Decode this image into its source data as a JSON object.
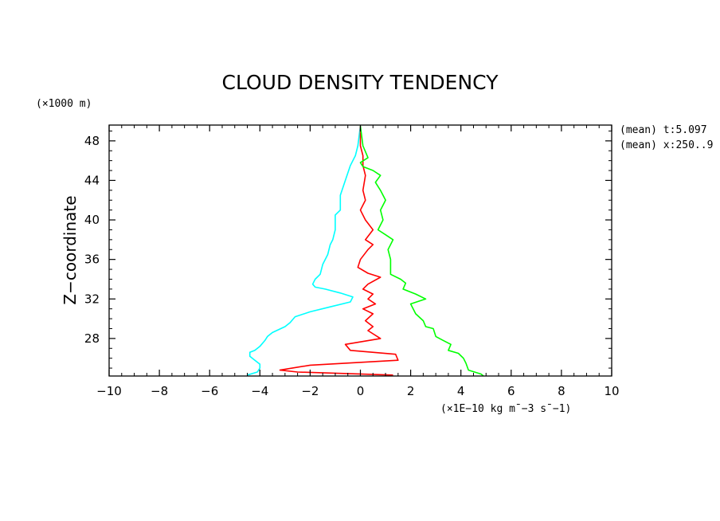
{
  "chart_data": {
    "type": "line",
    "title": "CLOUD DENSITY TENDENCY",
    "ylabel": "Z−coordinate",
    "yunit": "(×1000 m)",
    "xunit": "(×1E−10 kg m¯−3 s¯−1)",
    "annotations": [
      "(mean) t:5.097",
      "(mean) x:250..9"
    ],
    "xlim": [
      -10,
      10
    ],
    "ylim": [
      24.2,
      49.6
    ],
    "x_ticks": [
      -10,
      -8,
      -6,
      -4,
      -2,
      0,
      2,
      4,
      6,
      8,
      10
    ],
    "x_tick_labels": [
      "−10",
      "−8",
      "−6",
      "−4",
      "−2",
      "0",
      "2",
      "4",
      "6",
      "8",
      "10"
    ],
    "y_ticks": [
      28,
      32,
      36,
      40,
      44,
      48
    ],
    "y_tick_labels": [
      "28",
      "32",
      "36",
      "40",
      "44",
      "48"
    ],
    "series": [
      {
        "name": "cyan",
        "color": "#00ffff",
        "points": [
          [
            0,
            49.5
          ],
          [
            -0.1,
            47.5
          ],
          [
            -0.2,
            46.5
          ],
          [
            -0.4,
            45.5
          ],
          [
            -0.6,
            44
          ],
          [
            -0.8,
            42.5
          ],
          [
            -0.8,
            41
          ],
          [
            -1.0,
            40.5
          ],
          [
            -1.0,
            39
          ],
          [
            -1.1,
            38
          ],
          [
            -1.2,
            37.5
          ],
          [
            -1.3,
            36.5
          ],
          [
            -1.5,
            35.5
          ],
          [
            -1.6,
            34.5
          ],
          [
            -1.8,
            34
          ],
          [
            -1.9,
            33.5
          ],
          [
            -1.8,
            33.2
          ],
          [
            -1.4,
            33
          ],
          [
            -0.8,
            32.6
          ],
          [
            -0.3,
            32.2
          ],
          [
            -0.4,
            31.7
          ],
          [
            -1.2,
            31.2
          ],
          [
            -2.0,
            30.7
          ],
          [
            -2.6,
            30.2
          ],
          [
            -2.8,
            29.6
          ],
          [
            -3.0,
            29.2
          ],
          [
            -3.5,
            28.6
          ],
          [
            -3.7,
            28.2
          ],
          [
            -3.8,
            27.8
          ],
          [
            -4.0,
            27.2
          ],
          [
            -4.2,
            26.8
          ],
          [
            -4.4,
            26.6
          ],
          [
            -4.4,
            26.2
          ],
          [
            -4.2,
            25.8
          ],
          [
            -4.0,
            25.4
          ],
          [
            -4.0,
            25.0
          ],
          [
            -4.1,
            24.6
          ],
          [
            -4.5,
            24.3
          ]
        ]
      },
      {
        "name": "red",
        "color": "#ff0000",
        "points": [
          [
            0,
            49.5
          ],
          [
            0,
            47.5
          ],
          [
            0.1,
            46.5
          ],
          [
            0.1,
            45.5
          ],
          [
            0.2,
            44.5
          ],
          [
            0.1,
            43
          ],
          [
            0.2,
            42
          ],
          [
            0.0,
            41
          ],
          [
            0.2,
            40
          ],
          [
            0.5,
            39
          ],
          [
            0.2,
            38
          ],
          [
            0.5,
            37.5
          ],
          [
            0.3,
            37
          ],
          [
            0.0,
            36
          ],
          [
            -0.1,
            35.2
          ],
          [
            0.3,
            34.6
          ],
          [
            0.8,
            34.2
          ],
          [
            0.3,
            33.5
          ],
          [
            0.1,
            33
          ],
          [
            0.5,
            32.5
          ],
          [
            0.3,
            32
          ],
          [
            0.6,
            31.5
          ],
          [
            0.1,
            31
          ],
          [
            0.5,
            30.5
          ],
          [
            0.2,
            29.8
          ],
          [
            0.5,
            29.2
          ],
          [
            0.3,
            28.8
          ],
          [
            0.8,
            28
          ],
          [
            -0.6,
            27.4
          ],
          [
            -0.4,
            26.8
          ],
          [
            1.4,
            26.4
          ],
          [
            1.5,
            25.8
          ],
          [
            -2.0,
            25.3
          ],
          [
            -3.2,
            24.8
          ],
          [
            -2.5,
            24.6
          ],
          [
            1.3,
            24.3
          ]
        ]
      },
      {
        "name": "green",
        "color": "#00ff00",
        "points": [
          [
            0,
            49.5
          ],
          [
            0.1,
            47.5
          ],
          [
            0.3,
            46.3
          ],
          [
            0,
            45.8
          ],
          [
            0.1,
            45.4
          ],
          [
            0.5,
            45
          ],
          [
            0.8,
            44.5
          ],
          [
            0.6,
            43.8
          ],
          [
            0.8,
            43
          ],
          [
            1.0,
            42
          ],
          [
            0.8,
            41
          ],
          [
            0.9,
            40
          ],
          [
            0.7,
            39
          ],
          [
            1.0,
            38.5
          ],
          [
            1.3,
            38
          ],
          [
            1.1,
            37
          ],
          [
            1.2,
            36
          ],
          [
            1.2,
            35
          ],
          [
            1.2,
            34.5
          ],
          [
            1.6,
            34
          ],
          [
            1.8,
            33.6
          ],
          [
            1.7,
            33
          ],
          [
            2.2,
            32.5
          ],
          [
            2.6,
            32
          ],
          [
            2.0,
            31.5
          ],
          [
            2.2,
            30.5
          ],
          [
            2.5,
            29.8
          ],
          [
            2.6,
            29.2
          ],
          [
            2.9,
            29
          ],
          [
            3.0,
            28.2
          ],
          [
            3.3,
            27.8
          ],
          [
            3.6,
            27.4
          ],
          [
            3.5,
            26.8
          ],
          [
            3.9,
            26.5
          ],
          [
            4.1,
            26
          ],
          [
            4.2,
            25.5
          ],
          [
            4.3,
            24.8
          ],
          [
            4.8,
            24.4
          ],
          [
            4.9,
            24.2
          ]
        ]
      }
    ]
  }
}
